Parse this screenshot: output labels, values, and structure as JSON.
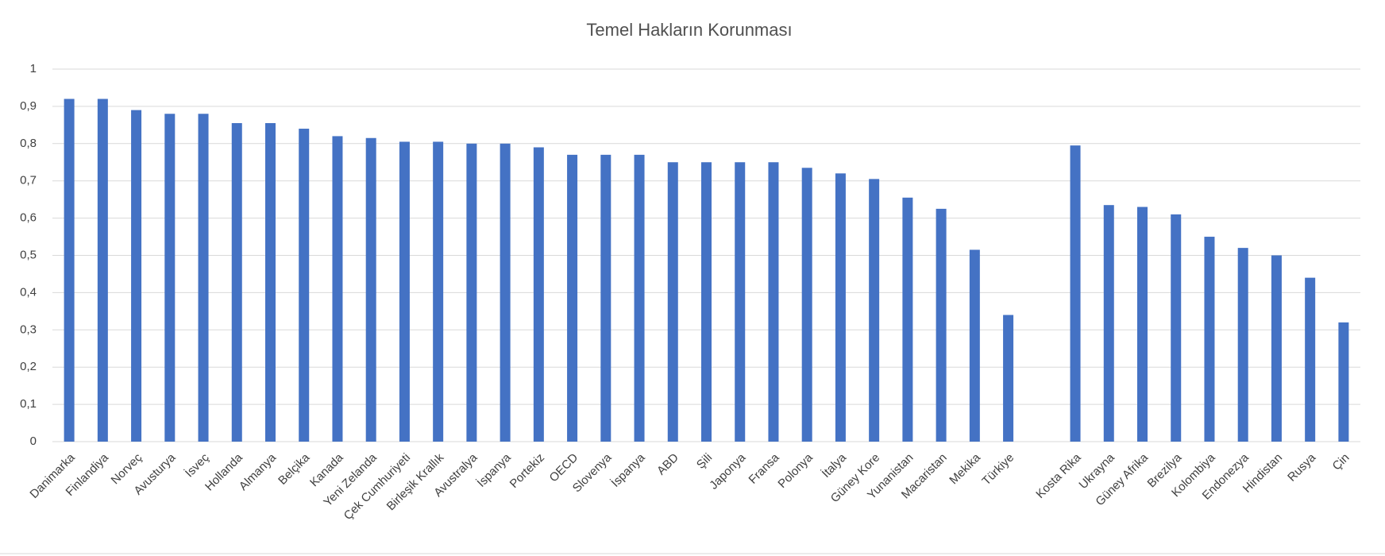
{
  "chart_data": {
    "type": "bar",
    "title": "Temel Hakların Korunması",
    "categories": [
      "Danimarka",
      "Finlandiya",
      "Norveç",
      "Avusturya",
      "İsveç",
      "Hollanda",
      "Almanya",
      "Belçika",
      "Kanada",
      "Yeni Zelanda",
      "Çek Cumhuriyeti",
      "Birleşik Krallık",
      "Avustralya",
      "İspanya",
      "Portekiz",
      "OECD",
      "Slovenya",
      "İspanya",
      "ABD",
      "Şili",
      "Japonya",
      "Fransa",
      "Polonya",
      "İtalya",
      "Güney Kore",
      "Yunanistan",
      "Macaristan",
      "Mekika",
      "Türkiye",
      null,
      "Kosta Rika",
      "Ukrayna",
      "Güney Afrika",
      "Brezilya",
      "Kolombiya",
      "Endonezya",
      "Hindistan",
      "Rusya",
      "Çin"
    ],
    "values": [
      0.92,
      0.92,
      0.89,
      0.88,
      0.88,
      0.855,
      0.855,
      0.84,
      0.82,
      0.815,
      0.805,
      0.805,
      0.8,
      0.8,
      0.79,
      0.77,
      0.77,
      0.77,
      0.75,
      0.75,
      0.75,
      0.75,
      0.735,
      0.72,
      0.705,
      0.655,
      0.625,
      0.515,
      0.34,
      null,
      0.795,
      0.635,
      0.63,
      0.61,
      0.55,
      0.52,
      0.5,
      0.44,
      0.32
    ],
    "color": "#4472c4",
    "ylim": [
      0,
      1
    ],
    "yticks": [
      0,
      {
        "value": 0.1,
        "label": "0,1"
      },
      {
        "value": 0.2,
        "label": "0,2"
      },
      {
        "value": 0.3,
        "label": "0,3"
      },
      {
        "value": 0.4,
        "label": "0,4"
      },
      {
        "value": 0.5,
        "label": "0,5"
      },
      {
        "value": 0.6,
        "label": "0,6"
      },
      {
        "value": 0.7,
        "label": "0,7"
      },
      {
        "value": 0.8,
        "label": "0,8"
      },
      {
        "value": 0.9,
        "label": "0,9"
      },
      1
    ],
    "grid": true
  }
}
